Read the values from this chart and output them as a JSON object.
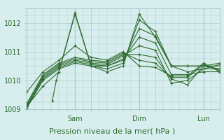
{
  "title": "",
  "xlabel": "Pression niveau de la mer( hPa )",
  "ylabel": "",
  "bg_color": "#d8eeee",
  "grid_color": "#aacccc",
  "line_color": "#2d6b2d",
  "ylim": [
    1009,
    1012.5
  ],
  "xlim": [
    0,
    72
  ],
  "yticks": [
    1009,
    1010,
    1011,
    1012
  ],
  "xtick_labels": [
    [
      "Sam",
      18
    ],
    [
      "Dim",
      42
    ],
    [
      "Lun",
      66
    ]
  ],
  "series": [
    [
      9.5,
      1009.3,
      11,
      1010.0,
      18,
      1012.3,
      24,
      1010.5,
      30,
      1010.3,
      36,
      1010.5,
      42,
      1012.3,
      48,
      1011.5,
      54,
      1010.5,
      60,
      1010.5,
      66,
      1010.5,
      72,
      1010.5
    ],
    [
      0,
      1009.1,
      6,
      1009.8,
      12,
      1010.3,
      18,
      1012.35,
      24,
      1010.5,
      30,
      1010.4,
      36,
      1010.6,
      42,
      1012.1,
      48,
      1011.7,
      54,
      1010.5,
      60,
      1010.5,
      66,
      1010.5,
      72,
      1010.6
    ],
    [
      0,
      1009.05,
      6,
      1010.0,
      12,
      1010.4,
      18,
      1010.6,
      24,
      1010.5,
      30,
      1010.5,
      36,
      1010.7,
      42,
      1011.8,
      48,
      1011.55,
      54,
      1010.5,
      60,
      1010.3,
      66,
      1010.4,
      72,
      1010.4
    ],
    [
      0,
      1009.05,
      6,
      1010.05,
      12,
      1010.45,
      18,
      1010.65,
      24,
      1010.55,
      30,
      1010.5,
      36,
      1010.75,
      42,
      1011.5,
      48,
      1011.3,
      54,
      1010.2,
      60,
      1010.2,
      66,
      1010.3,
      72,
      1010.3
    ],
    [
      0,
      1009.1,
      6,
      1010.1,
      12,
      1010.5,
      18,
      1010.7,
      24,
      1010.6,
      30,
      1010.55,
      36,
      1010.85,
      42,
      1011.2,
      48,
      1011.05,
      54,
      1009.9,
      60,
      1010.0,
      66,
      1010.4,
      72,
      1010.55
    ],
    [
      0,
      1009.15,
      6,
      1010.15,
      12,
      1010.55,
      18,
      1010.75,
      24,
      1010.65,
      30,
      1010.6,
      36,
      1010.9,
      42,
      1010.9,
      48,
      1010.8,
      54,
      1010.05,
      60,
      1009.85,
      66,
      1010.5,
      72,
      1010.4
    ],
    [
      0,
      1009.2,
      6,
      1010.2,
      12,
      1010.6,
      18,
      1010.8,
      24,
      1010.7,
      30,
      1010.65,
      36,
      1010.95,
      42,
      1010.7,
      48,
      1010.6,
      54,
      1010.1,
      60,
      1010.1,
      66,
      1010.55,
      72,
      1010.35
    ],
    [
      0,
      1009.6,
      6,
      1010.3,
      12,
      1010.7,
      18,
      1011.2,
      24,
      1010.8,
      30,
      1010.7,
      36,
      1011.0,
      42,
      1010.5,
      48,
      1010.45,
      54,
      1010.15,
      60,
      1010.15,
      66,
      1010.6,
      72,
      1010.3
    ]
  ]
}
